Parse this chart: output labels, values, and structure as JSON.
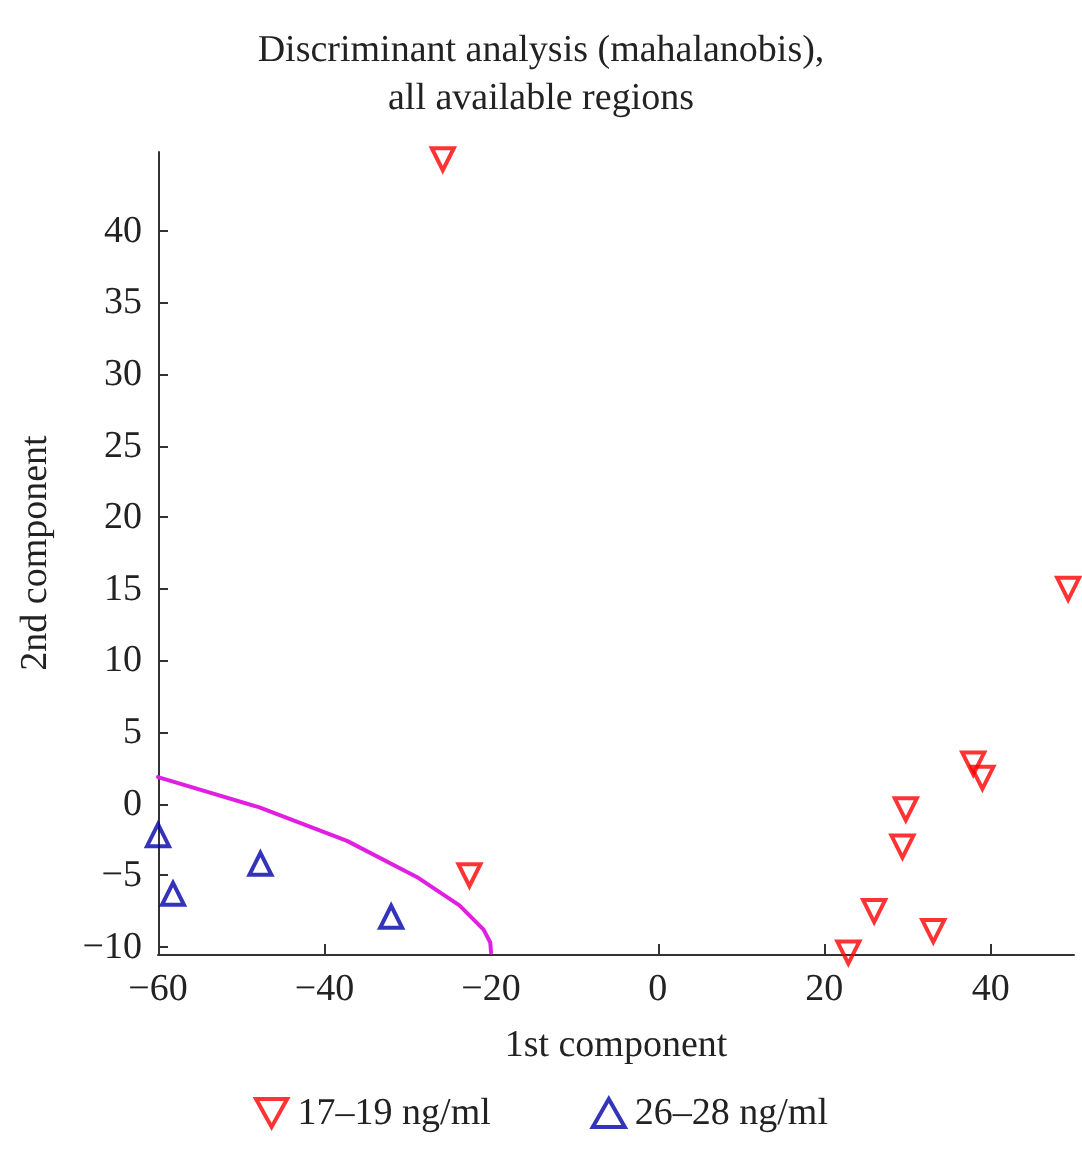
{
  "chart_data": {
    "type": "scatter",
    "title": "Discriminant analysis (mahalanobis),\nall available regions",
    "xlabel": "1st component",
    "ylabel": "2nd component",
    "xlim": [
      -60,
      50
    ],
    "ylim": [
      -10.5,
      45.5
    ],
    "xticks": [
      -60,
      -40,
      -20,
      0,
      20,
      40
    ],
    "yticks": [
      -10,
      -5,
      0,
      5,
      10,
      15,
      20,
      25,
      30,
      35,
      40
    ],
    "legend": "bottom",
    "series": [
      {
        "name": "17–19 ng/ml",
        "color": "#ff0000",
        "marker": "triangle_down",
        "x": [
          -25.8,
          -22.6,
          22.9,
          26,
          29.4,
          29.8,
          33.1,
          37.9,
          39,
          49.3
        ],
        "values": [
          45,
          -5,
          -10.4,
          -7.5,
          -3,
          -0.4,
          -8.9,
          2.8,
          1.8,
          15
        ]
      },
      {
        "name": "26–28 ng/ml",
        "color": "#0000aa",
        "marker": "triangle",
        "x": [
          -60,
          -58.2,
          -47.7,
          -32
        ],
        "values": [
          -2.2,
          -6.3,
          -4.2,
          -7.9
        ]
      },
      {
        "type": "line",
        "color": "#e020e0",
        "marker": "none",
        "x": [
          -60,
          -47.9,
          -37.3,
          -28.7,
          -23.8,
          -20.9,
          -20.1,
          -20
        ],
        "values": [
          1.85,
          -0.25,
          -2.6,
          -5.2,
          -7.1,
          -8.8,
          -9.7,
          -10.4
        ]
      }
    ]
  }
}
